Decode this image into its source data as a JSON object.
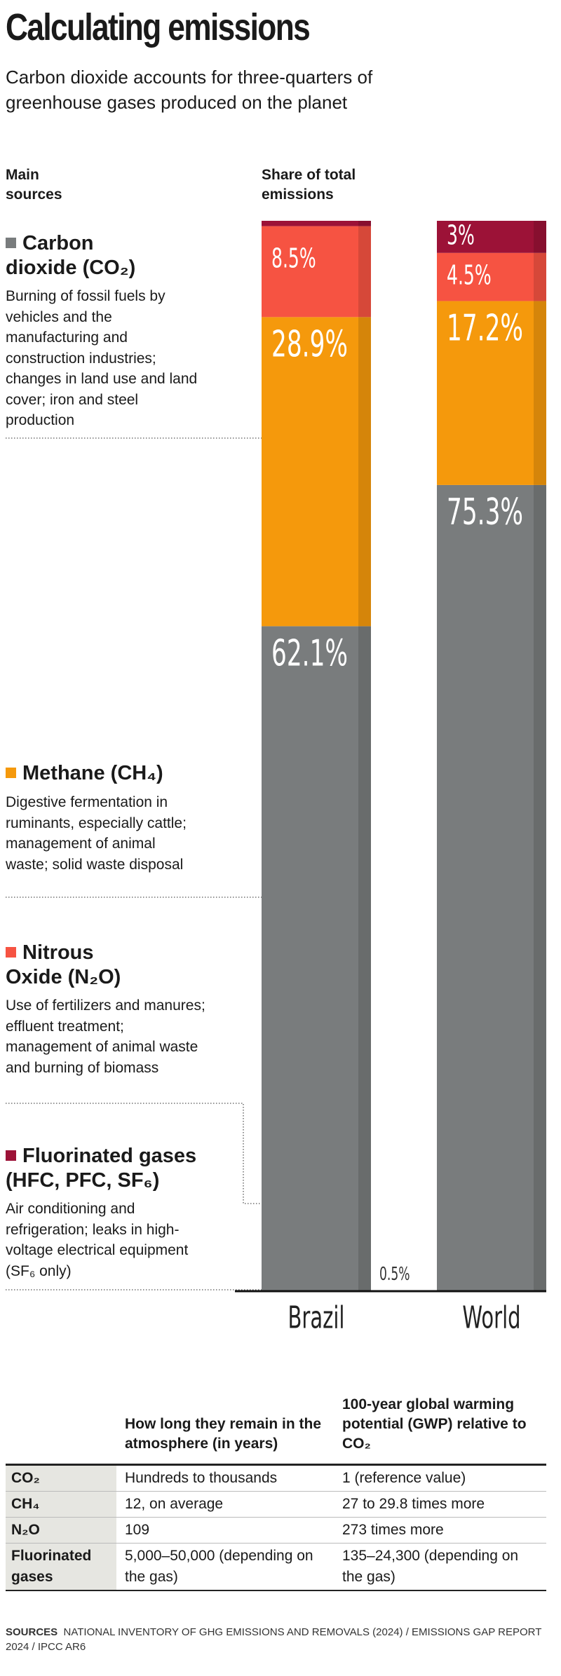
{
  "header": {
    "title": "Calculating emissions",
    "subtitle": "Carbon dioxide accounts for three-quarters of greenhouse gases produced on the planet",
    "column_label": "Main sources"
  },
  "source_notes": [
    "Burning of fossil fuels by vehicles and the manufacturing and construction industries; changes in land use and land cover; iron and steel production",
    "Digestive fermentation in ruminants, especially cattle; management of animal waste; solid waste disposal",
    "Use of fertilizers and manures; effluent treatment; management of animal waste and burning of biomass",
    "Air conditioning and refrigeration; leaks in high-voltage electrical equipment (SF₆ only)"
  ],
  "chart_data": {
    "type": "bar",
    "stacked": true,
    "ylabel": "Share of total emissions",
    "categories": [
      "Brazil",
      "World"
    ],
    "series": [
      {
        "name": "Carbon dioxide (CO₂)",
        "color": "#797c7d",
        "values": [
          62.1,
          75.3
        ],
        "value_labels": [
          "62.1%",
          "75.3%"
        ]
      },
      {
        "name": "Methane (CH₄)",
        "color": "#f5990c",
        "values": [
          28.9,
          17.2
        ],
        "value_labels": [
          "28.9%",
          "17.2%"
        ]
      },
      {
        "name": "Nitrous Oxide (N₂O)",
        "color": "#f65342",
        "values": [
          8.5,
          4.5
        ],
        "value_labels": [
          "8.5%",
          "4.5%"
        ]
      },
      {
        "name": "Fluorinated gases (HFC, PFC, SF₆)",
        "color": "#9c1237",
        "values": [
          0.5,
          3
        ],
        "value_labels": [
          "0.5%",
          "3%"
        ]
      }
    ]
  },
  "table": {
    "header": [
      "How long they remain in the atmosphere (in years)",
      "100-year global warming potential (GWP) relative to CO₂"
    ],
    "rows": [
      [
        "CO₂",
        "Hundreds to thousands",
        "1 (reference value)"
      ],
      [
        "CH₄",
        "12, on average",
        "27 to 29.8 times more"
      ],
      [
        "N₂O",
        "109",
        "273 times more"
      ],
      [
        "Fluorinated gases",
        "5,000–50,000 (depending on the gas)",
        "135–24,300 (depending on the gas)"
      ]
    ]
  },
  "sources": {
    "label": "SOURCES",
    "text": "NATIONAL INVENTORY OF GHG EMISSIONS AND REMOVALS (2024) / EMISSIONS GAP REPORT 2024 / IPCC AR6"
  }
}
